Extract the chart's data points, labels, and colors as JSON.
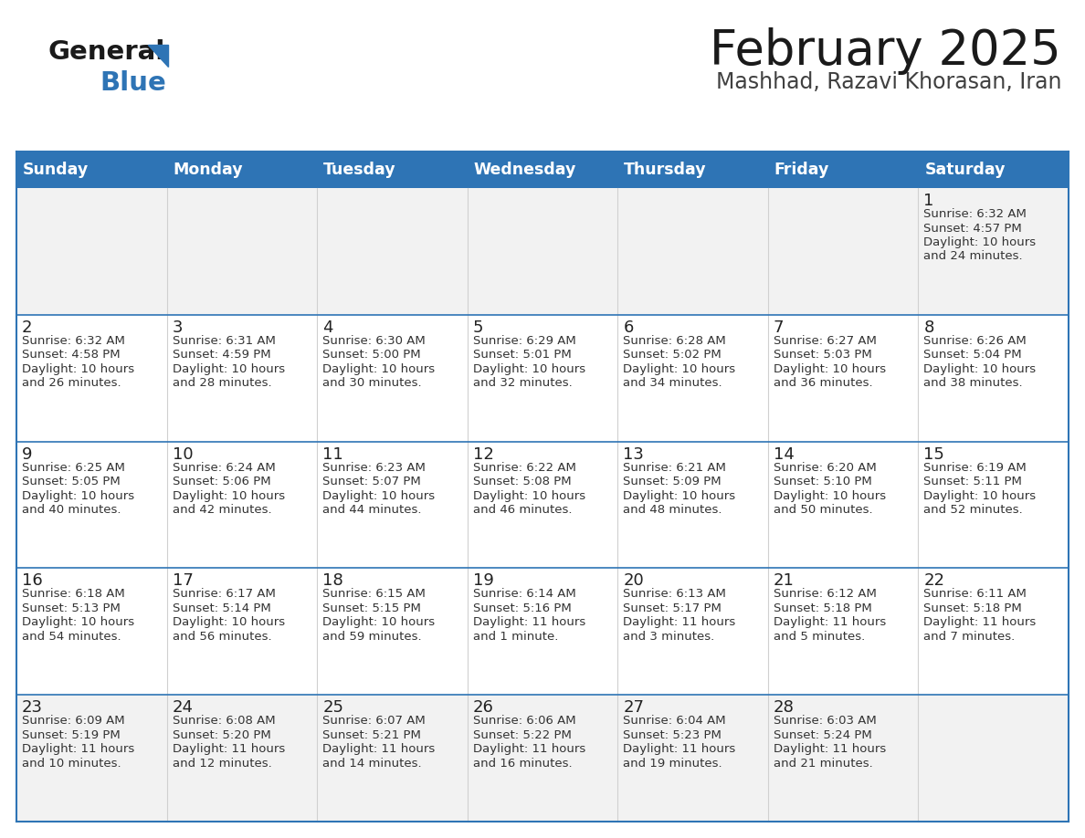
{
  "title": "February 2025",
  "subtitle": "Mashhad, Razavi Khorasan, Iran",
  "header_bg": "#2e74b5",
  "header_text_color": "#ffffff",
  "row_bg": [
    "#f2f2f2",
    "#ffffff",
    "#ffffff",
    "#ffffff",
    "#f2f2f2"
  ],
  "border_color": "#2e74b5",
  "sep_line_color": "#2e74b5",
  "vert_line_color": "#d0d0d0",
  "day_names": [
    "Sunday",
    "Monday",
    "Tuesday",
    "Wednesday",
    "Thursday",
    "Friday",
    "Saturday"
  ],
  "title_color": "#1a1a1a",
  "subtitle_color": "#404040",
  "day_num_color": "#222222",
  "cell_text_color": "#333333",
  "logo_general_color": "#1a1a1a",
  "logo_blue_color": "#2e74b5",
  "logo_triangle_color": "#2e74b5",
  "calendar_data": [
    [
      null,
      null,
      null,
      null,
      null,
      null,
      {
        "day": 1,
        "sunrise": "6:32 AM",
        "sunset": "4:57 PM",
        "daylight": "10 hours\nand 24 minutes."
      }
    ],
    [
      {
        "day": 2,
        "sunrise": "6:32 AM",
        "sunset": "4:58 PM",
        "daylight": "10 hours\nand 26 minutes."
      },
      {
        "day": 3,
        "sunrise": "6:31 AM",
        "sunset": "4:59 PM",
        "daylight": "10 hours\nand 28 minutes."
      },
      {
        "day": 4,
        "sunrise": "6:30 AM",
        "sunset": "5:00 PM",
        "daylight": "10 hours\nand 30 minutes."
      },
      {
        "day": 5,
        "sunrise": "6:29 AM",
        "sunset": "5:01 PM",
        "daylight": "10 hours\nand 32 minutes."
      },
      {
        "day": 6,
        "sunrise": "6:28 AM",
        "sunset": "5:02 PM",
        "daylight": "10 hours\nand 34 minutes."
      },
      {
        "day": 7,
        "sunrise": "6:27 AM",
        "sunset": "5:03 PM",
        "daylight": "10 hours\nand 36 minutes."
      },
      {
        "day": 8,
        "sunrise": "6:26 AM",
        "sunset": "5:04 PM",
        "daylight": "10 hours\nand 38 minutes."
      }
    ],
    [
      {
        "day": 9,
        "sunrise": "6:25 AM",
        "sunset": "5:05 PM",
        "daylight": "10 hours\nand 40 minutes."
      },
      {
        "day": 10,
        "sunrise": "6:24 AM",
        "sunset": "5:06 PM",
        "daylight": "10 hours\nand 42 minutes."
      },
      {
        "day": 11,
        "sunrise": "6:23 AM",
        "sunset": "5:07 PM",
        "daylight": "10 hours\nand 44 minutes."
      },
      {
        "day": 12,
        "sunrise": "6:22 AM",
        "sunset": "5:08 PM",
        "daylight": "10 hours\nand 46 minutes."
      },
      {
        "day": 13,
        "sunrise": "6:21 AM",
        "sunset": "5:09 PM",
        "daylight": "10 hours\nand 48 minutes."
      },
      {
        "day": 14,
        "sunrise": "6:20 AM",
        "sunset": "5:10 PM",
        "daylight": "10 hours\nand 50 minutes."
      },
      {
        "day": 15,
        "sunrise": "6:19 AM",
        "sunset": "5:11 PM",
        "daylight": "10 hours\nand 52 minutes."
      }
    ],
    [
      {
        "day": 16,
        "sunrise": "6:18 AM",
        "sunset": "5:13 PM",
        "daylight": "10 hours\nand 54 minutes."
      },
      {
        "day": 17,
        "sunrise": "6:17 AM",
        "sunset": "5:14 PM",
        "daylight": "10 hours\nand 56 minutes."
      },
      {
        "day": 18,
        "sunrise": "6:15 AM",
        "sunset": "5:15 PM",
        "daylight": "10 hours\nand 59 minutes."
      },
      {
        "day": 19,
        "sunrise": "6:14 AM",
        "sunset": "5:16 PM",
        "daylight": "11 hours\nand 1 minute."
      },
      {
        "day": 20,
        "sunrise": "6:13 AM",
        "sunset": "5:17 PM",
        "daylight": "11 hours\nand 3 minutes."
      },
      {
        "day": 21,
        "sunrise": "6:12 AM",
        "sunset": "5:18 PM",
        "daylight": "11 hours\nand 5 minutes."
      },
      {
        "day": 22,
        "sunrise": "6:11 AM",
        "sunset": "5:18 PM",
        "daylight": "11 hours\nand 7 minutes."
      }
    ],
    [
      {
        "day": 23,
        "sunrise": "6:09 AM",
        "sunset": "5:19 PM",
        "daylight": "11 hours\nand 10 minutes."
      },
      {
        "day": 24,
        "sunrise": "6:08 AM",
        "sunset": "5:20 PM",
        "daylight": "11 hours\nand 12 minutes."
      },
      {
        "day": 25,
        "sunrise": "6:07 AM",
        "sunset": "5:21 PM",
        "daylight": "11 hours\nand 14 minutes."
      },
      {
        "day": 26,
        "sunrise": "6:06 AM",
        "sunset": "5:22 PM",
        "daylight": "11 hours\nand 16 minutes."
      },
      {
        "day": 27,
        "sunrise": "6:04 AM",
        "sunset": "5:23 PM",
        "daylight": "11 hours\nand 19 minutes."
      },
      {
        "day": 28,
        "sunrise": "6:03 AM",
        "sunset": "5:24 PM",
        "daylight": "11 hours\nand 21 minutes."
      },
      null
    ]
  ]
}
